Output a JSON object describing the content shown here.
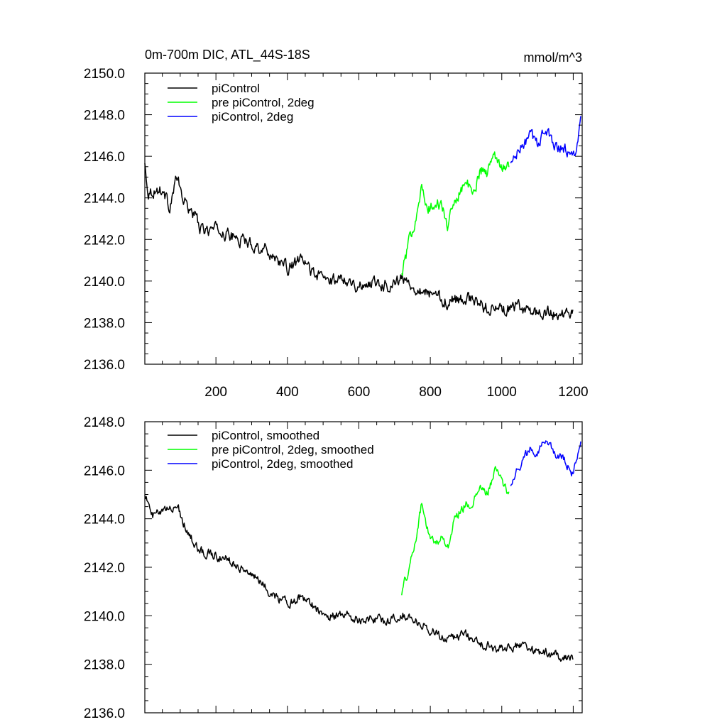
{
  "chart_data": [
    {
      "type": "line",
      "title": "0m-700m DIC, ATL_44S-18S",
      "units": "mmol/m^3",
      "xlim": [
        1,
        1225
      ],
      "ylim": [
        2136.0,
        2150.0
      ],
      "x_ticks": [
        200,
        400,
        600,
        800,
        1000,
        1200
      ],
      "x_tick_labels": [
        "200",
        "400",
        "600",
        "800",
        "1000",
        "1200"
      ],
      "y_ticks": [
        2136,
        2138,
        2140,
        2142,
        2144,
        2146,
        2148,
        2150
      ],
      "y_tick_labels": [
        "2136.0",
        "2138.0",
        "2140.0",
        "2142.0",
        "2144.0",
        "2146.0",
        "2148.0",
        "2150.0"
      ],
      "legend_position": "top-left",
      "noise": 0.55,
      "series": [
        {
          "name": "piControl",
          "color": "#000000",
          "anchors": [
            [
              1,
              2145.6
            ],
            [
              10,
              2144.3
            ],
            [
              50,
              2144.4
            ],
            [
              70,
              2143.6
            ],
            [
              90,
              2145.0
            ],
            [
              110,
              2143.8
            ],
            [
              140,
              2143.2
            ],
            [
              160,
              2142.4
            ],
            [
              200,
              2142.5
            ],
            [
              250,
              2142.1
            ],
            [
              300,
              2141.8
            ],
            [
              350,
              2141.4
            ],
            [
              400,
              2140.6
            ],
            [
              440,
              2141.0
            ],
            [
              480,
              2140.3
            ],
            [
              520,
              2140.0
            ],
            [
              560,
              2140.2
            ],
            [
              600,
              2139.7
            ],
            [
              640,
              2140.0
            ],
            [
              680,
              2139.8
            ],
            [
              720,
              2140.1
            ],
            [
              760,
              2139.7
            ],
            [
              800,
              2139.4
            ],
            [
              850,
              2139.0
            ],
            [
              900,
              2139.2
            ],
            [
              950,
              2138.8
            ],
            [
              1000,
              2138.6
            ],
            [
              1050,
              2138.7
            ],
            [
              1100,
              2138.5
            ],
            [
              1150,
              2138.4
            ],
            [
              1200,
              2138.5
            ]
          ]
        },
        {
          "name": "pre piControl, 2deg",
          "color": "#00ff00",
          "anchors": [
            [
              720,
              2140.3
            ],
            [
              740,
              2141.8
            ],
            [
              760,
              2143.2
            ],
            [
              775,
              2144.5
            ],
            [
              790,
              2143.4
            ],
            [
              810,
              2143.6
            ],
            [
              830,
              2143.7
            ],
            [
              850,
              2142.6
            ],
            [
              870,
              2144.0
            ],
            [
              900,
              2144.8
            ],
            [
              920,
              2144.1
            ],
            [
              940,
              2145.4
            ],
            [
              960,
              2145.2
            ],
            [
              980,
              2146.1
            ],
            [
              1000,
              2145.6
            ],
            [
              1020,
              2145.5
            ]
          ]
        },
        {
          "name": "piControl, 2deg",
          "color": "#0000ff",
          "anchors": [
            [
              1025,
              2145.6
            ],
            [
              1050,
              2146.3
            ],
            [
              1080,
              2147.0
            ],
            [
              1100,
              2146.6
            ],
            [
              1120,
              2147.3
            ],
            [
              1140,
              2146.7
            ],
            [
              1160,
              2146.5
            ],
            [
              1180,
              2146.3
            ],
            [
              1200,
              2145.9
            ],
            [
              1215,
              2147.0
            ],
            [
              1222,
              2147.8
            ]
          ]
        }
      ]
    },
    {
      "type": "line",
      "xlim": [
        1,
        1225
      ],
      "ylim": [
        2136.0,
        2148.0
      ],
      "x_ticks": [
        200,
        400,
        600,
        800,
        1000,
        1200
      ],
      "y_ticks": [
        2136,
        2138,
        2140,
        2142,
        2144,
        2146,
        2148
      ],
      "y_tick_labels": [
        "2136.0",
        "2138.0",
        "2140.0",
        "2142.0",
        "2144.0",
        "2146.0",
        "2148.0"
      ],
      "legend_position": "top-left",
      "noise": 0.35,
      "series": [
        {
          "name": "piControl, smoothed",
          "color": "#000000",
          "anchors": [
            [
              1,
              2145.1
            ],
            [
              20,
              2144.1
            ],
            [
              60,
              2144.3
            ],
            [
              90,
              2144.6
            ],
            [
              120,
              2143.5
            ],
            [
              150,
              2142.7
            ],
            [
              200,
              2142.5
            ],
            [
              250,
              2142.2
            ],
            [
              300,
              2141.7
            ],
            [
              350,
              2141.0
            ],
            [
              400,
              2140.5
            ],
            [
              440,
              2140.8
            ],
            [
              480,
              2140.3
            ],
            [
              520,
              2140.0
            ],
            [
              560,
              2140.1
            ],
            [
              600,
              2139.8
            ],
            [
              640,
              2139.9
            ],
            [
              680,
              2139.7
            ],
            [
              720,
              2140.1
            ],
            [
              760,
              2139.8
            ],
            [
              800,
              2139.4
            ],
            [
              850,
              2139.1
            ],
            [
              900,
              2139.2
            ],
            [
              950,
              2138.8
            ],
            [
              1000,
              2138.6
            ],
            [
              1050,
              2138.8
            ],
            [
              1100,
              2138.5
            ],
            [
              1150,
              2138.4
            ],
            [
              1200,
              2138.2
            ]
          ]
        },
        {
          "name": "pre piControl, 2deg, smoothed",
          "color": "#00ff00",
          "anchors": [
            [
              720,
              2141.0
            ],
            [
              740,
              2141.9
            ],
            [
              760,
              2143.2
            ],
            [
              775,
              2144.6
            ],
            [
              790,
              2143.6
            ],
            [
              810,
              2143.0
            ],
            [
              830,
              2143.2
            ],
            [
              850,
              2142.9
            ],
            [
              870,
              2144.1
            ],
            [
              900,
              2144.6
            ],
            [
              920,
              2144.6
            ],
            [
              940,
              2145.3
            ],
            [
              960,
              2145.0
            ],
            [
              980,
              2146.0
            ],
            [
              1000,
              2145.6
            ],
            [
              1020,
              2145.0
            ]
          ]
        },
        {
          "name": "piControl, 2deg, smoothed",
          "color": "#0000ff",
          "anchors": [
            [
              1025,
              2145.5
            ],
            [
              1050,
              2146.2
            ],
            [
              1080,
              2146.9
            ],
            [
              1100,
              2146.8
            ],
            [
              1120,
              2147.3
            ],
            [
              1140,
              2146.8
            ],
            [
              1160,
              2146.6
            ],
            [
              1180,
              2146.3
            ],
            [
              1200,
              2145.8
            ],
            [
              1215,
              2146.9
            ],
            [
              1222,
              2147.2
            ]
          ]
        }
      ]
    }
  ]
}
